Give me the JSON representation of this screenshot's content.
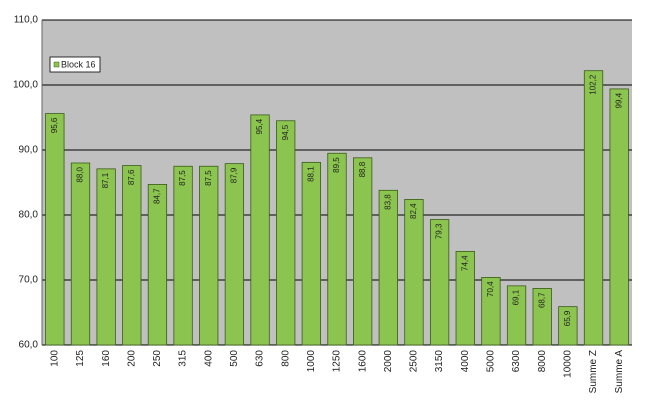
{
  "chart_data": {
    "type": "bar",
    "categories": [
      "100",
      "125",
      "160",
      "200",
      "250",
      "315",
      "400",
      "500",
      "630",
      "800",
      "1000",
      "1250",
      "1600",
      "2000",
      "2500",
      "3150",
      "4000",
      "5000",
      "6300",
      "8000",
      "10000",
      "Summe Z",
      "Summe A"
    ],
    "series": [
      {
        "name": "Block 16",
        "color": "#8cc450",
        "values": [
          95.6,
          88.0,
          87.1,
          87.6,
          84.7,
          87.5,
          87.5,
          87.9,
          95.4,
          94.5,
          88.1,
          89.5,
          88.8,
          83.8,
          82.4,
          79.3,
          74.4,
          70.4,
          69.1,
          68.7,
          65.9,
          102.2,
          99.4
        ],
        "value_labels": [
          "95,6",
          "88,0",
          "87,1",
          "87,6",
          "84,7",
          "87,5",
          "87,5",
          "87,9",
          "95,4",
          "94,5",
          "88,1",
          "89,5",
          "88,8",
          "83,8",
          "82,4",
          "79,3",
          "74,4",
          "70,4",
          "69,1",
          "68,7",
          "65,9",
          "102,2",
          "99,4"
        ]
      }
    ],
    "ylim": [
      60,
      110
    ],
    "yticks": [
      {
        "value": 60,
        "label": "60,0"
      },
      {
        "value": 70,
        "label": "70,0"
      },
      {
        "value": 80,
        "label": "80,0"
      },
      {
        "value": 90,
        "label": "90,0"
      },
      {
        "value": 100,
        "label": "100,0"
      },
      {
        "value": 110,
        "label": "110,0"
      }
    ],
    "grid": true,
    "legend": "upper left"
  }
}
